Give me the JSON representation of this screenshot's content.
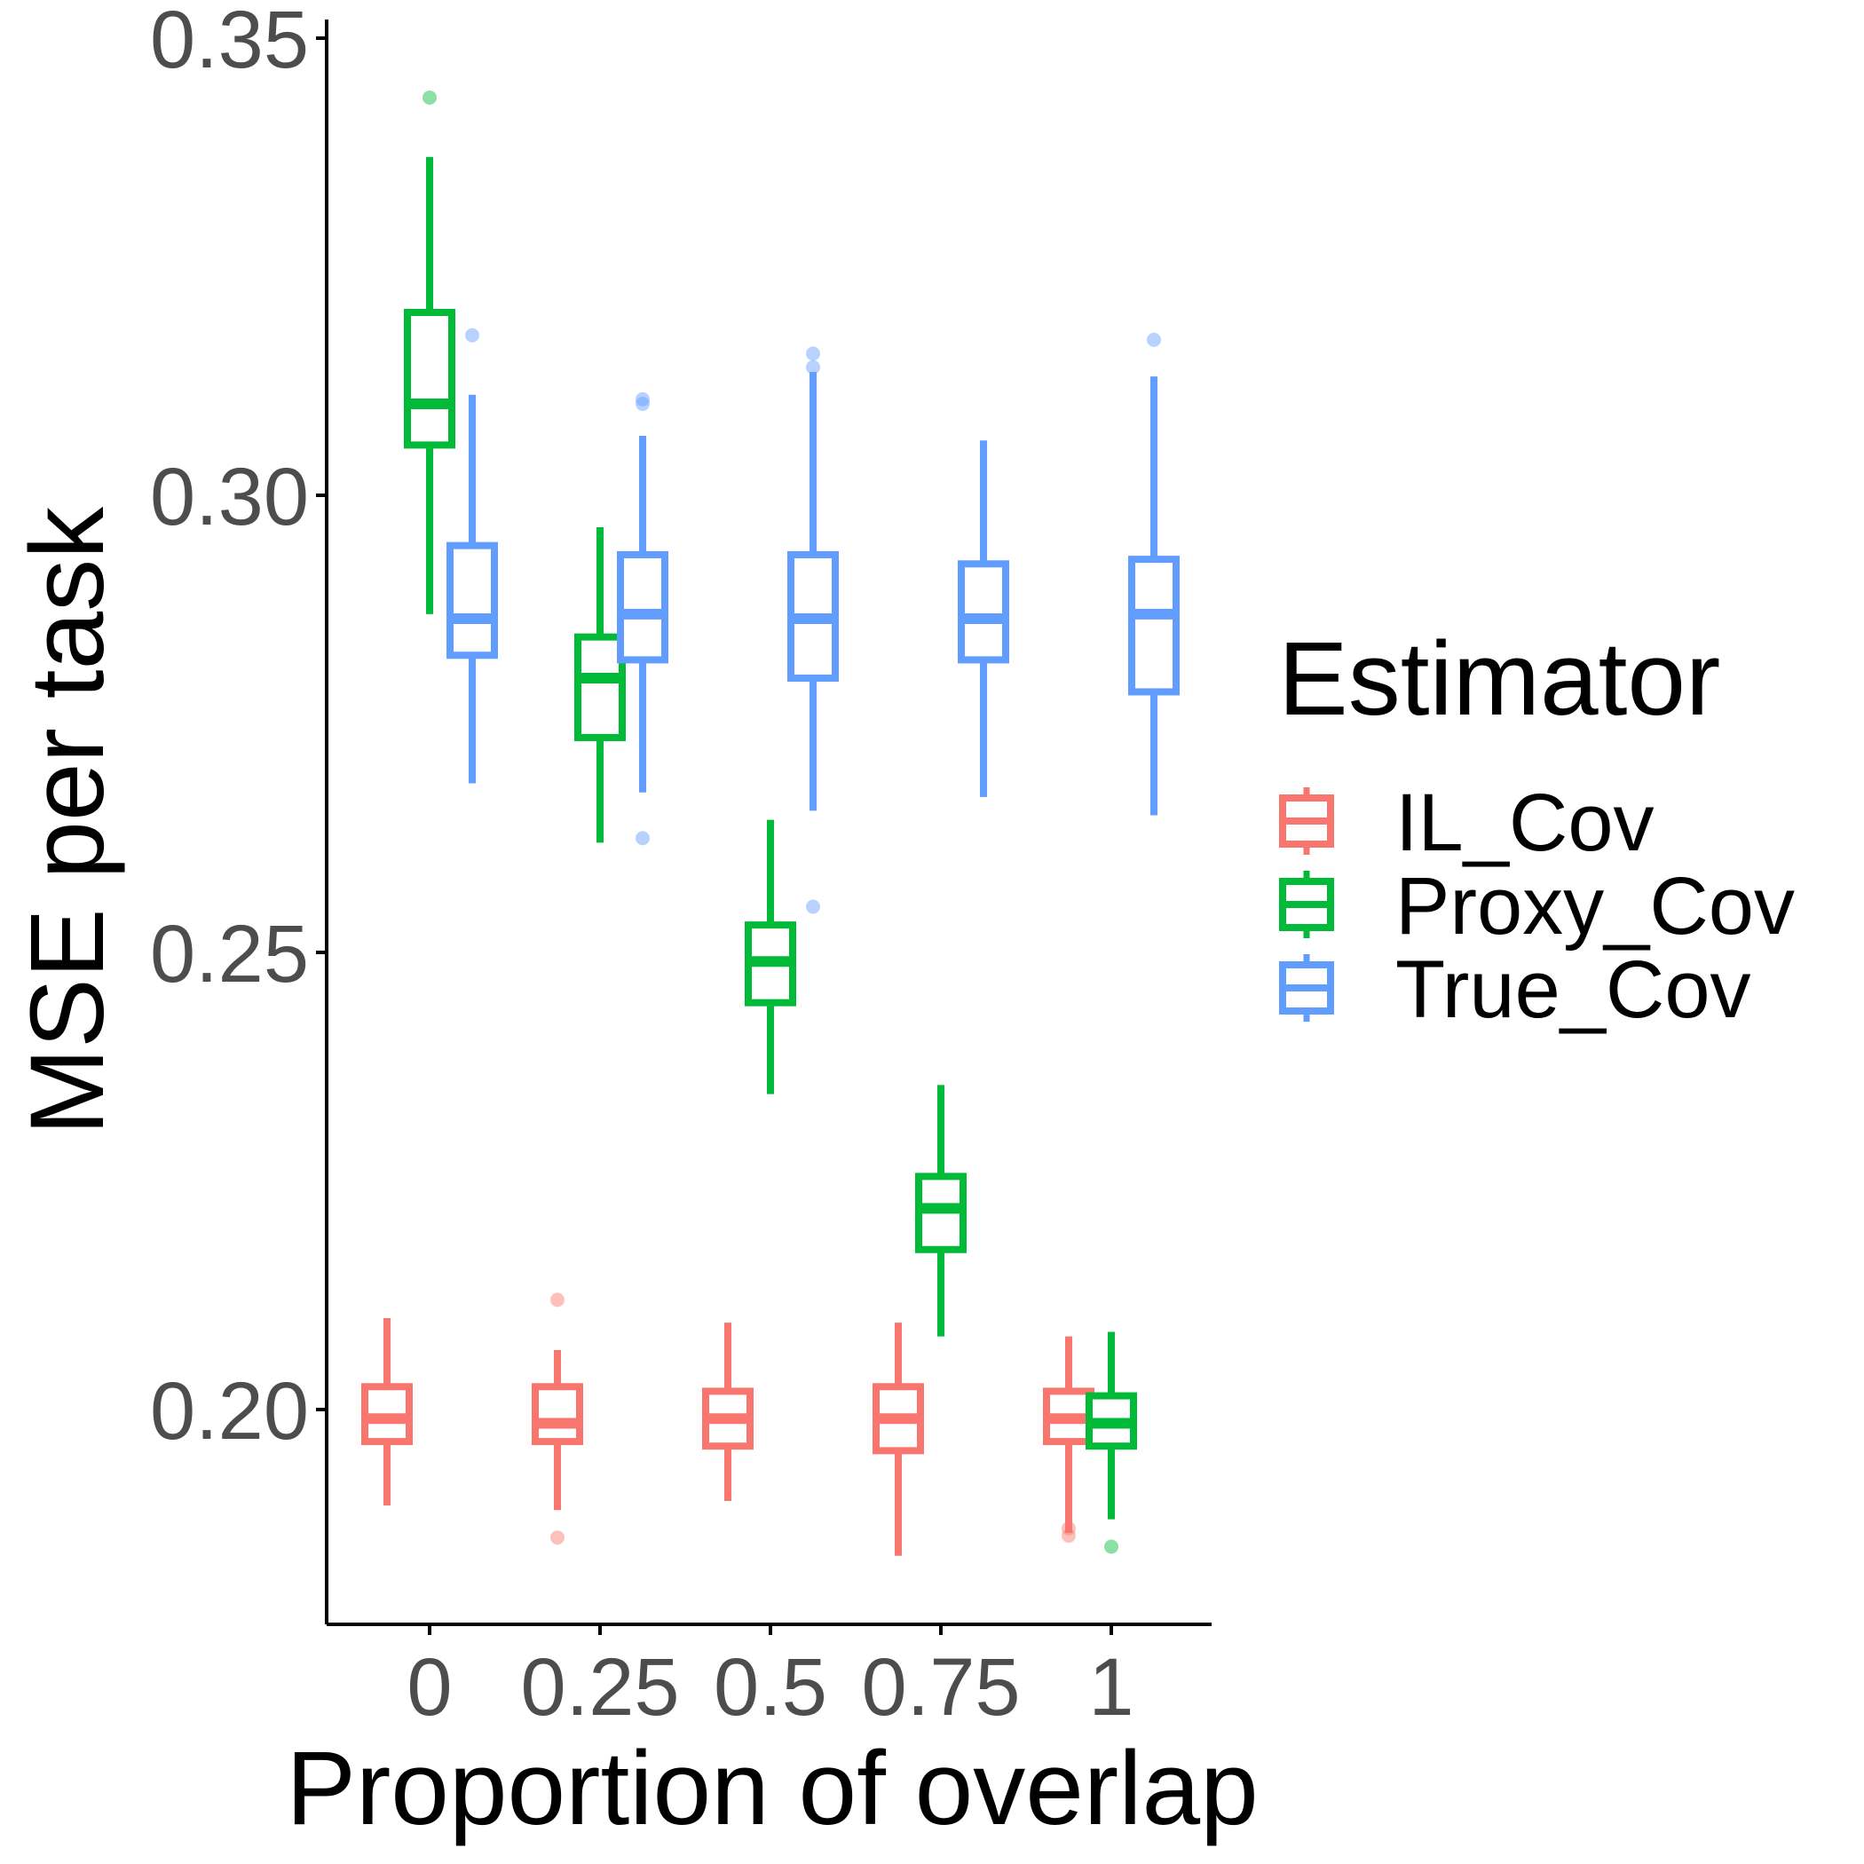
{
  "chart_data": {
    "type": "box",
    "title": "",
    "xlabel": "Proportion of overlap",
    "ylabel": "MSE per task",
    "x_categories": [
      "0",
      "0.25",
      "0.5",
      "0.75",
      "1"
    ],
    "ylim": [
      0.18,
      0.355
    ],
    "yticks": [
      0.2,
      0.25,
      0.3,
      0.35
    ],
    "ytick_labels": [
      "0.20",
      "0.25",
      "0.30",
      "0.35"
    ],
    "grid": false,
    "legend": {
      "title": "Estimator",
      "position": "right"
    },
    "series": [
      {
        "name": "IL_Cov",
        "color": "#F8766D",
        "boxes": [
          {
            "x": "0",
            "whisker_low": 0.1895,
            "q1": 0.1965,
            "median": 0.199,
            "q3": 0.2025,
            "whisker_high": 0.21,
            "outliers": []
          },
          {
            "x": "0.25",
            "whisker_low": 0.189,
            "q1": 0.1965,
            "median": 0.1985,
            "q3": 0.2025,
            "whisker_high": 0.2065,
            "outliers": [
              0.212,
              0.186
            ]
          },
          {
            "x": "0.5",
            "whisker_low": 0.19,
            "q1": 0.196,
            "median": 0.199,
            "q3": 0.202,
            "whisker_high": 0.2095,
            "outliers": []
          },
          {
            "x": "0.75",
            "whisker_low": 0.184,
            "q1": 0.1955,
            "median": 0.199,
            "q3": 0.2025,
            "whisker_high": 0.2095,
            "outliers": []
          },
          {
            "x": "1",
            "whisker_low": 0.1865,
            "q1": 0.1965,
            "median": 0.199,
            "q3": 0.202,
            "whisker_high": 0.208,
            "outliers": [
              0.187,
              0.1862
            ]
          }
        ]
      },
      {
        "name": "Proxy_Cov",
        "color": "#00BA38",
        "boxes": [
          {
            "x": "0",
            "whisker_low": 0.287,
            "q1": 0.3055,
            "median": 0.31,
            "q3": 0.32,
            "whisker_high": 0.337,
            "outliers": [
              0.3435
            ]
          },
          {
            "x": "0.25",
            "whisker_low": 0.262,
            "q1": 0.2735,
            "median": 0.28,
            "q3": 0.2845,
            "whisker_high": 0.2965,
            "outliers": []
          },
          {
            "x": "0.5",
            "whisker_low": 0.2345,
            "q1": 0.2445,
            "median": 0.249,
            "q3": 0.253,
            "whisker_high": 0.2645,
            "outliers": []
          },
          {
            "x": "0.75",
            "whisker_low": 0.208,
            "q1": 0.2175,
            "median": 0.222,
            "q3": 0.2255,
            "whisker_high": 0.2355,
            "outliers": []
          },
          {
            "x": "1",
            "whisker_low": 0.188,
            "q1": 0.196,
            "median": 0.1985,
            "q3": 0.2015,
            "whisker_high": 0.2085,
            "outliers": [
              0.185
            ]
          }
        ]
      },
      {
        "name": "True_Cov",
        "color": "#619CFF",
        "boxes": [
          {
            "x": "0",
            "whisker_low": 0.2685,
            "q1": 0.2825,
            "median": 0.2865,
            "q3": 0.2945,
            "whisker_high": 0.311,
            "outliers": [
              0.3175
            ]
          },
          {
            "x": "0.25",
            "whisker_low": 0.2675,
            "q1": 0.282,
            "median": 0.287,
            "q3": 0.2935,
            "whisker_high": 0.3065,
            "outliers": [
              0.3105,
              0.31,
              0.2625
            ]
          },
          {
            "x": "0.5",
            "whisker_low": 0.2655,
            "q1": 0.28,
            "median": 0.2865,
            "q3": 0.2935,
            "whisker_high": 0.3135,
            "outliers": [
              0.3155,
              0.314,
              0.255
            ]
          },
          {
            "x": "0.75",
            "whisker_low": 0.267,
            "q1": 0.282,
            "median": 0.2865,
            "q3": 0.2925,
            "whisker_high": 0.306,
            "outliers": []
          },
          {
            "x": "1",
            "whisker_low": 0.265,
            "q1": 0.2785,
            "median": 0.287,
            "q3": 0.293,
            "whisker_high": 0.313,
            "outliers": [
              0.317
            ]
          }
        ]
      }
    ]
  }
}
